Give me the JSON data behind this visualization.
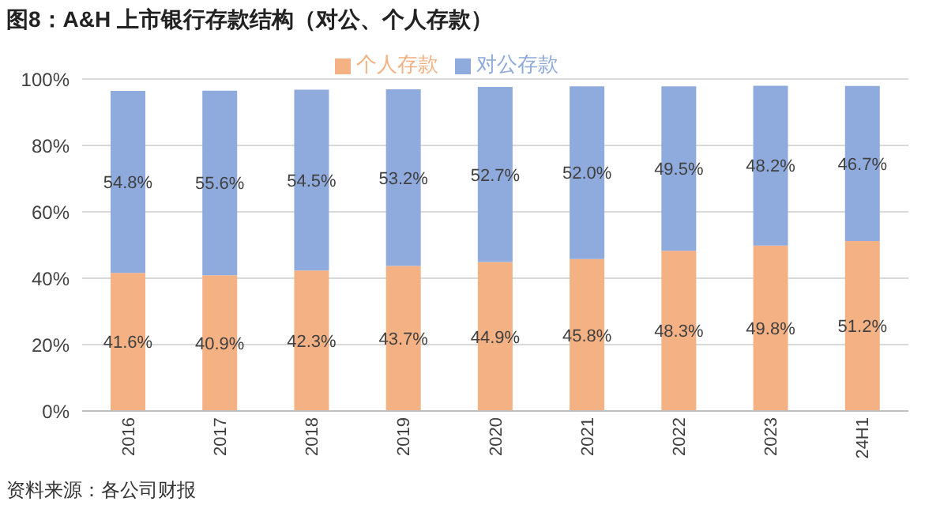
{
  "chart_data": {
    "type": "bar",
    "title": "图8：A&H 上市银行存款结构（对公、个人存款）",
    "categories": [
      "2016",
      "2017",
      "2018",
      "2019",
      "2020",
      "2021",
      "2022",
      "2023",
      "24H1"
    ],
    "stacked": true,
    "series": [
      {
        "name": "个人存款",
        "color": "#f4b183",
        "values": [
          41.6,
          40.9,
          42.3,
          43.7,
          44.9,
          45.8,
          48.3,
          49.8,
          51.2
        ],
        "value_labels": [
          "41.6%",
          "40.9%",
          "42.3%",
          "43.7%",
          "44.9%",
          "45.8%",
          "48.3%",
          "49.8%",
          "51.2%"
        ]
      },
      {
        "name": "对公存款",
        "color": "#8faadc",
        "values": [
          54.8,
          55.6,
          54.5,
          53.2,
          52.7,
          52.0,
          49.5,
          48.2,
          46.7
        ],
        "value_labels": [
          "54.8%",
          "55.6%",
          "54.5%",
          "53.2%",
          "52.7%",
          "52.0%",
          "49.5%",
          "48.2%",
          "46.7%"
        ]
      }
    ],
    "ylim": [
      0,
      100
    ],
    "yticks": [
      {
        "value": 0,
        "label": "0%"
      },
      {
        "value": 20,
        "label": "20%"
      },
      {
        "value": 40,
        "label": "40%"
      },
      {
        "value": 60,
        "label": "60%"
      },
      {
        "value": 80,
        "label": "80%"
      },
      {
        "value": 100,
        "label": "100%"
      }
    ],
    "grid": "y",
    "legend": "top",
    "annotations": [
      "资料来源：各公司财报"
    ]
  }
}
